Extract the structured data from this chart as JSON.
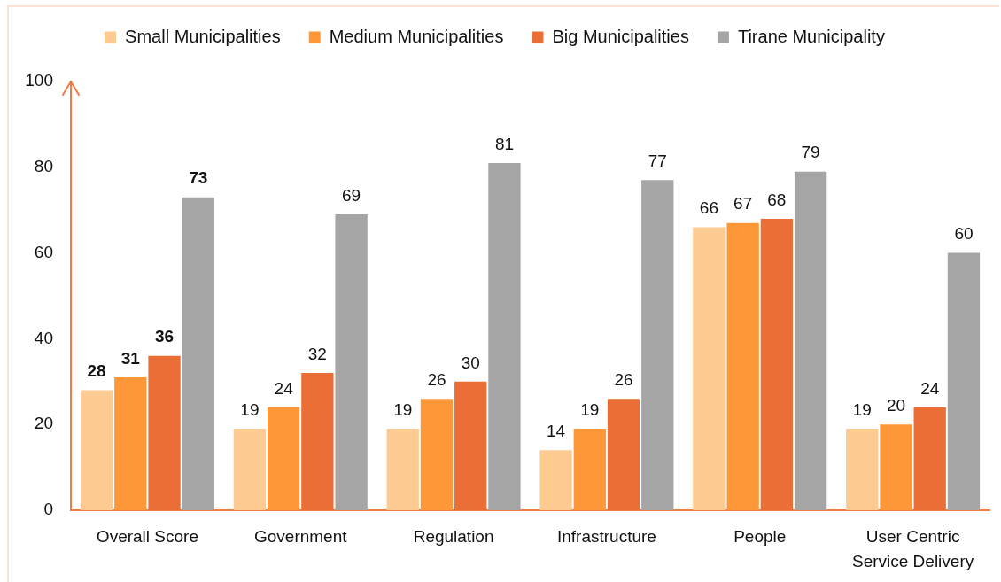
{
  "chart_data": {
    "type": "bar",
    "categories": [
      "Overall Score",
      "Government",
      "Regulation",
      "Infrastructure",
      "People",
      "User Centric Service Delivery"
    ],
    "series": [
      {
        "name": "Small Municipalities",
        "color": "#fdcb91",
        "values": [
          28,
          19,
          19,
          14,
          66,
          19
        ]
      },
      {
        "name": "Medium Municipalities",
        "color": "#fd9738",
        "values": [
          31,
          24,
          26,
          19,
          67,
          20
        ]
      },
      {
        "name": "Big Municipalities",
        "color": "#ec6e37",
        "values": [
          36,
          32,
          30,
          26,
          68,
          24
        ]
      },
      {
        "name": "Tirane Municipality",
        "color": "#a5a5a5",
        "values": [
          73,
          69,
          81,
          77,
          79,
          60
        ]
      }
    ],
    "ylim": [
      0,
      100
    ],
    "yticks": [
      0,
      20,
      40,
      60,
      80,
      100
    ],
    "grid": false,
    "legend": "top",
    "data_labels": true
  }
}
